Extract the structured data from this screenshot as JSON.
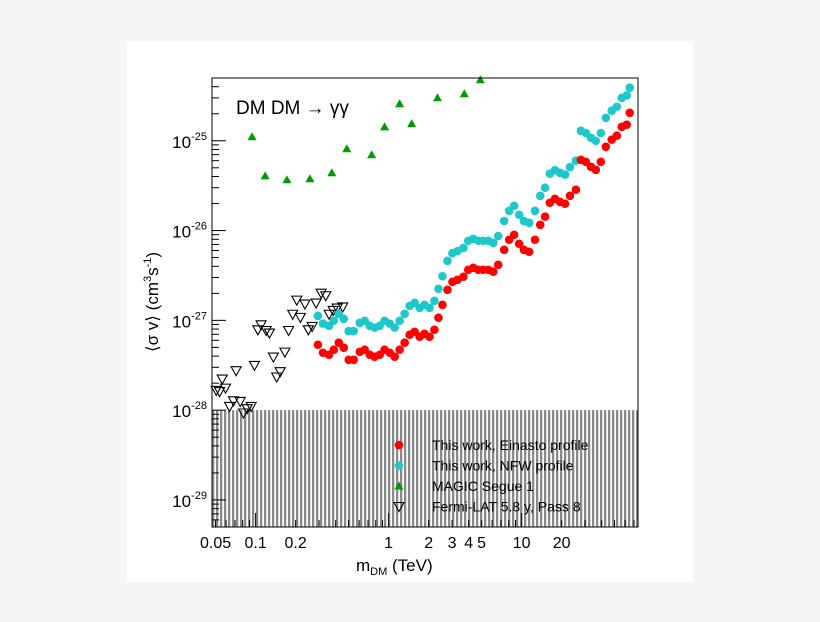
{
  "chart_data": {
    "type": "scatter",
    "title": "DM DM → γγ",
    "xlabel": {
      "main": "m",
      "sub": "DM",
      "rest": " (TeV)"
    },
    "ylabel": {
      "main": "⟨σ v⟩ (cm",
      "sup1": "3",
      "mid": "s",
      "sup2": "-1",
      "end": ")"
    },
    "x_scale": "log",
    "y_scale": "log",
    "xlim": [
      0.047,
      75
    ],
    "ylim": [
      5e-30,
      5e-25
    ],
    "grid": false,
    "legend_placement": "bottom-right",
    "x_ticks": [
      {
        "value": 0.05,
        "label": "0.05"
      },
      {
        "value": 0.1,
        "label": "0.1"
      },
      {
        "value": 0.2,
        "label": "0.2"
      },
      {
        "value": 1,
        "label": "1"
      },
      {
        "value": 2,
        "label": "2"
      },
      {
        "value": 3,
        "label": "3"
      },
      {
        "value": 4,
        "label": "4"
      },
      {
        "value": 5,
        "label": "5"
      },
      {
        "value": 10,
        "label": "10"
      },
      {
        "value": 20,
        "label": "20"
      }
    ],
    "y_ticks": [
      {
        "value": 1e-25,
        "base": "10",
        "exp": "-25"
      },
      {
        "value": 1e-26,
        "base": "10",
        "exp": "-26"
      },
      {
        "value": 1e-27,
        "base": "10",
        "exp": "-27"
      },
      {
        "value": 1e-28,
        "base": "10",
        "exp": "-28"
      },
      {
        "value": 1e-29,
        "base": "10",
        "exp": "-29"
      }
    ],
    "shaded_region": {
      "y_max": 1e-28,
      "color": "#8a8a8a",
      "style": "vertical-hatch"
    },
    "series": [
      {
        "name": "This work, Einasto profile",
        "marker": "circle",
        "color": "#ff0000",
        "x": [
          0.294,
          0.321,
          0.356,
          0.387,
          0.422,
          0.46,
          0.501,
          0.547,
          0.607,
          0.661,
          0.721,
          0.785,
          0.857,
          0.933,
          1.02,
          1.11,
          1.21,
          1.32,
          1.44,
          1.57,
          1.71,
          1.86,
          2.03,
          2.21,
          2.37,
          2.54,
          2.77,
          3.02,
          3.29,
          3.65,
          3.97,
          4.33,
          4.72,
          5.15,
          5.61,
          6.12,
          6.67,
          7.39,
          8.06,
          8.79,
          9.58,
          10.4,
          11.4,
          12.6,
          13.8,
          15.0,
          16.3,
          17.8,
          19.4,
          21.2,
          23.1,
          25.6,
          27.9,
          30.4,
          33.2,
          36.1,
          39.4,
          43.0,
          47.6,
          52.0,
          56.6,
          61.7,
          65.0
        ],
        "y": [
          5.35e-28,
          4.36e-28,
          4.14e-28,
          4.71e-28,
          5.64e-28,
          4.96e-28,
          3.64e-28,
          3.64e-28,
          4.47e-28,
          4.71e-28,
          4.14e-28,
          3.94e-28,
          4.14e-28,
          4.71e-28,
          4.36e-28,
          3.94e-28,
          4.71e-28,
          5.64e-28,
          6.92e-28,
          7.47e-28,
          6.57e-28,
          7.09e-28,
          6.57e-28,
          7.86e-28,
          1.07e-27,
          1.49e-27,
          2.19e-27,
          2.69e-27,
          2.83e-27,
          3.06e-27,
          3.66e-27,
          3.85e-27,
          3.66e-27,
          3.66e-27,
          3.66e-27,
          3.48e-27,
          4.16e-27,
          6.11e-27,
          7.9e-27,
          8.98e-27,
          7.13e-27,
          6.11e-27,
          5.81e-27,
          7.9e-27,
          1.16e-26,
          1.43e-26,
          2.04e-26,
          2.26e-26,
          2.09e-26,
          1.99e-26,
          2.44e-26,
          2.85e-26,
          6.14e-26,
          5.83e-26,
          5.13e-26,
          4.75e-26,
          5.83e-26,
          8.57e-26,
          1.03e-25,
          1.14e-25,
          1.43e-25,
          1.51e-25,
          2.05e-25
        ]
      },
      {
        "name": "This work, NFW profile",
        "marker": "circle",
        "color": "#1ec8c8",
        "x": [
          0.294,
          0.321,
          0.356,
          0.387,
          0.422,
          0.46,
          0.501,
          0.547,
          0.607,
          0.661,
          0.721,
          0.785,
          0.857,
          0.933,
          1.02,
          1.11,
          1.21,
          1.32,
          1.44,
          1.57,
          1.71,
          1.86,
          2.03,
          2.21,
          2.37,
          2.54,
          2.77,
          3.02,
          3.29,
          3.65,
          3.97,
          4.33,
          4.72,
          5.15,
          5.61,
          6.12,
          6.67,
          7.39,
          8.06,
          8.79,
          9.58,
          10.4,
          11.4,
          12.6,
          13.8,
          15.0,
          16.3,
          17.8,
          19.4,
          21.2,
          23.1,
          25.6,
          27.9,
          30.4,
          33.2,
          36.1,
          39.4,
          43.0,
          47.6,
          52.0,
          56.6,
          61.7,
          65.0
        ],
        "y": [
          1.12e-27,
          9.2e-28,
          8.7e-28,
          9.9e-28,
          1.18e-27,
          1.04e-27,
          7.6e-28,
          7.6e-28,
          9.4e-28,
          9.9e-28,
          8.7e-28,
          8.3e-28,
          8.7e-28,
          9.9e-28,
          9.2e-28,
          8.3e-28,
          9.9e-28,
          1.18e-27,
          1.45e-27,
          1.57e-27,
          1.38e-27,
          1.49e-27,
          1.38e-27,
          1.65e-27,
          2.25e-27,
          3.1e-27,
          4.6e-27,
          5.6e-27,
          5.9e-27,
          6.4e-27,
          7.7e-27,
          8.1e-27,
          7.7e-27,
          7.7e-27,
          7.7e-27,
          7.3e-27,
          8.7e-27,
          1.28e-26,
          1.66e-26,
          1.89e-26,
          1.5e-26,
          1.28e-26,
          1.22e-26,
          1.66e-26,
          2.44e-26,
          3e-26,
          4.3e-26,
          4.7e-26,
          4.4e-26,
          4.2e-26,
          5.1e-26,
          6e-26,
          1.29e-25,
          1.22e-25,
          1.08e-25,
          1e-25,
          1.22e-25,
          1.8e-25,
          2.16e-25,
          2.4e-25,
          3e-25,
          3.2e-25,
          3.9e-25
        ]
      },
      {
        "name": "MAGIC Segue 1",
        "marker": "triangle-up",
        "color": "#009900",
        "x": [
          0.094,
          0.118,
          0.172,
          0.256,
          0.374,
          0.485,
          0.746,
          0.933,
          1.21,
          1.49,
          2.33,
          3.71,
          4.89
        ],
        "y": [
          1.11e-25,
          4.07e-26,
          3.68e-26,
          3.77e-26,
          4.4e-26,
          8.15e-26,
          6.98e-26,
          1.43e-25,
          2.58e-25,
          1.55e-25,
          3.01e-25,
          3.34e-25,
          4.78e-25
        ]
      },
      {
        "name": "Fermi-LAT 5.8 y, Pass 8",
        "marker": "triangle-down-open",
        "color": "#000000",
        "x": [
          0.0506,
          0.0536,
          0.0561,
          0.0594,
          0.0637,
          0.0682,
          0.0714,
          0.0766,
          0.0811,
          0.0864,
          0.0926,
          0.098,
          0.104,
          0.11,
          0.12,
          0.127,
          0.136,
          0.144,
          0.153,
          0.166,
          0.177,
          0.19,
          0.204,
          0.217,
          0.235,
          0.249,
          0.266,
          0.285,
          0.311,
          0.337,
          0.357,
          0.383,
          0.41,
          0.452
        ],
        "y": [
          1.66e-28,
          1.61e-28,
          2.22e-28,
          1.76e-28,
          1.1e-28,
          1.27e-28,
          2.75e-28,
          1.25e-28,
          9.3e-29,
          1.04e-28,
          1.1e-28,
          3.15e-28,
          7.85e-28,
          8.93e-28,
          7.71e-28,
          7.22e-28,
          3.9e-28,
          2.34e-28,
          2.68e-28,
          4.43e-28,
          7.71e-28,
          1.17e-27,
          1.68e-27,
          1.08e-27,
          1.52e-27,
          7.85e-28,
          8.55e-28,
          1.56e-27,
          2.01e-27,
          1.88e-27,
          1.17e-27,
          1.29e-27,
          1.37e-27,
          1.41e-27
        ]
      }
    ]
  }
}
